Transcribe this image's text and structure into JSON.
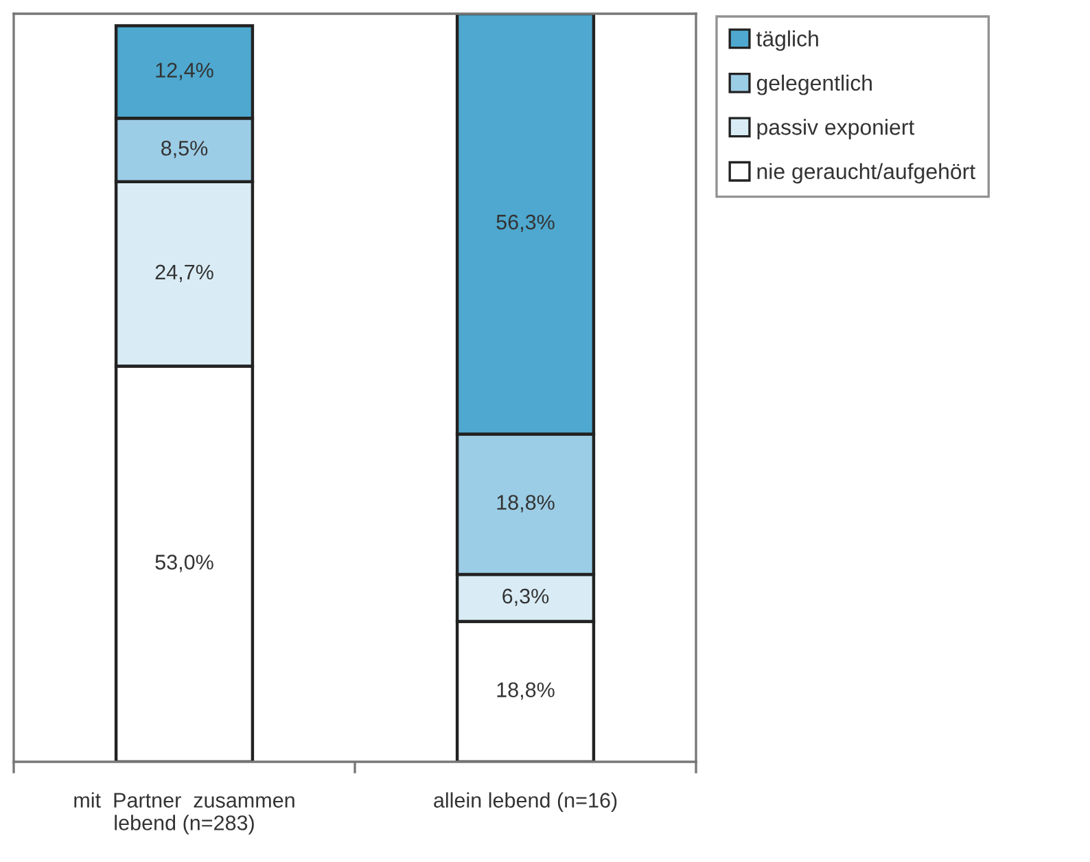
{
  "chart_data": {
    "type": "bar",
    "stacked": true,
    "categories": [
      "mit  Partner  zusammen\nlebend (n=283)",
      "allein lebend (n=16)"
    ],
    "series": [
      {
        "name": "nie geraucht/aufgehört",
        "color": "#ffffff",
        "values": [
          53.0,
          18.8
        ],
        "value_labels": [
          "53,0%",
          "18,8%"
        ]
      },
      {
        "name": "passiv exponiert",
        "color": "#d9ecf5",
        "values": [
          24.7,
          6.3
        ],
        "value_labels": [
          "24,7%",
          "6,3%"
        ]
      },
      {
        "name": "gelegentlich",
        "color": "#9ccde6",
        "values": [
          8.5,
          18.8
        ],
        "value_labels": [
          "8,5%",
          "18,8%"
        ]
      },
      {
        "name": "täglich",
        "color": "#4ea8cf",
        "values": [
          12.4,
          56.3
        ],
        "value_labels": [
          "12,4%",
          "56,3%"
        ]
      }
    ],
    "legend": "right",
    "grid": false
  }
}
